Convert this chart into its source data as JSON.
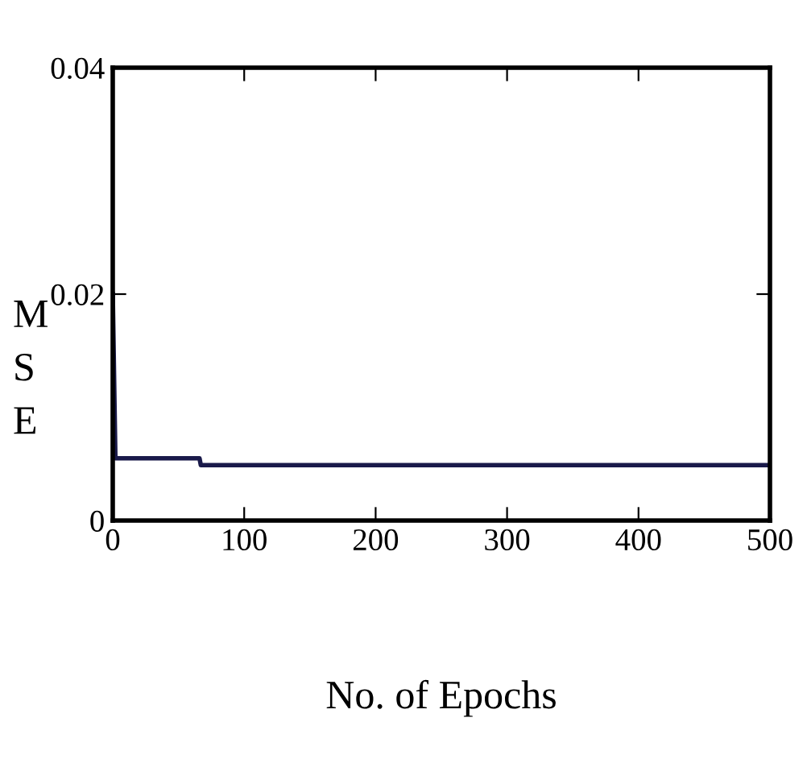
{
  "chart_data": {
    "type": "line",
    "xlabel": "No. of Epochs",
    "ylabel": "MSE",
    "x": [
      0,
      2,
      66,
      67,
      500
    ],
    "series": [
      {
        "color": "#1a1a4a",
        "values": [
          0.02,
          0.0055,
          0.0055,
          0.0049,
          0.0049
        ]
      }
    ],
    "xlim": [
      0,
      500
    ],
    "xticks": [
      0,
      100,
      200,
      300,
      400,
      500
    ],
    "ylim": [
      0,
      0.04
    ],
    "yticks": [
      0,
      0.02,
      0.04
    ],
    "grid": false,
    "legend": false,
    "marker": "none",
    "line_style": "solid"
  }
}
